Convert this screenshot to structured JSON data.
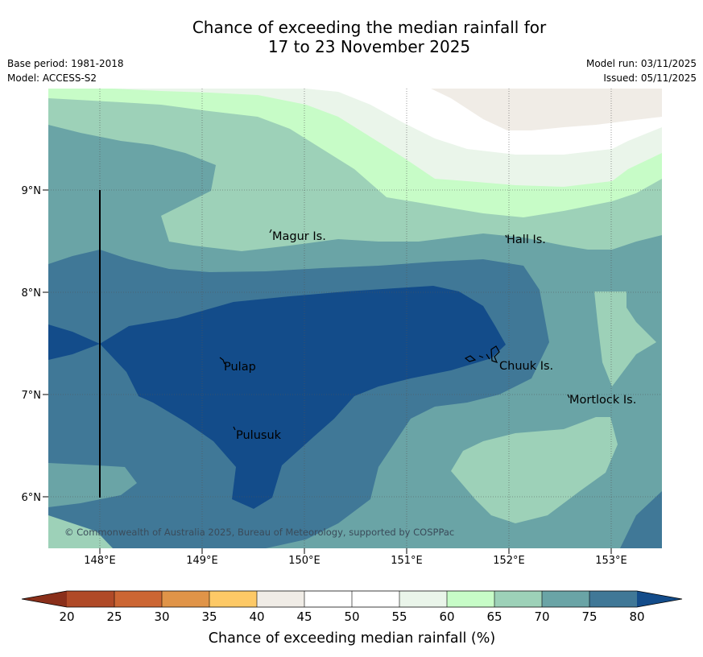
{
  "title": {
    "line1": "Chance of exceeding the median rainfall for",
    "line2": "17 to 23 November 2025"
  },
  "meta": {
    "base_period": "Base period: 1981-2018",
    "model": "Model: ACCESS-S2",
    "model_run": "Model run: 03/11/2025",
    "issued": "Issued: 05/11/2025"
  },
  "map": {
    "lat_ticks": [
      "9°N",
      "8°N",
      "7°N",
      "6°N"
    ],
    "lon_ticks": [
      "148°E",
      "149°E",
      "150°E",
      "151°E",
      "152°E",
      "153°E"
    ],
    "places": [
      "Magur Is.",
      "Hall Is.",
      "Pulap",
      "Chuuk Is.",
      "Mortlock Is.",
      "Pulusuk"
    ],
    "copyright": "© Commonwealth of Australia 2025, Bureau of Meteorology, supported by COSPPac"
  },
  "colorbar": {
    "label": "Chance of exceeding median rainfall (%)",
    "ticks": [
      "20",
      "25",
      "30",
      "35",
      "40",
      "45",
      "50",
      "55",
      "60",
      "65",
      "70",
      "75",
      "80"
    ],
    "colors": {
      "below_20": "#8a2f1a",
      "20_25": "#b04a27",
      "25_30": "#cc6633",
      "30_35": "#e09448",
      "35_40": "#fdc966",
      "40_45": "#f0ece6",
      "45_50": "#ffffff",
      "50_55": "#ffffff",
      "55_60": "#eaf5ea",
      "60_65": "#c7fcc7",
      "65_70": "#9dd1b8",
      "70_75": "#6aa4a6",
      "75_80": "#407897",
      "above_80": "#134c8a"
    }
  }
}
